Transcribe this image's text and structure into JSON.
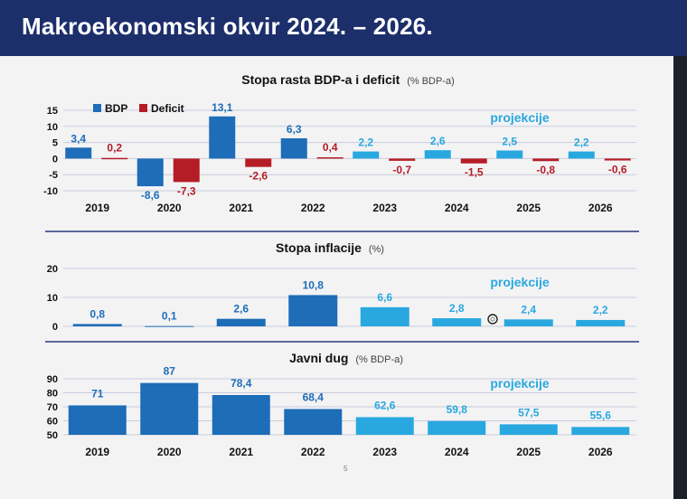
{
  "slide": {
    "title": "Makroekonomski okvir 2024. – 2026.",
    "page_number": "5"
  },
  "colors": {
    "header": "#1c2f6b",
    "actual": "#1d6db8",
    "projection": "#29a8e0",
    "deficit": "#b51d26",
    "projection_text": "#29a8e0",
    "divider": "#2a3a7a"
  },
  "chart_data": [
    {
      "type": "bar",
      "title": "Stopa rasta BDP-a i deficit",
      "unit": "(% BDP-a)",
      "projection_label": "projekcije",
      "categories": [
        "2019",
        "2020",
        "2021",
        "2022",
        "2023",
        "2024",
        "2025",
        "2026"
      ],
      "projection_start": "2023",
      "series": [
        {
          "name": "BDP",
          "values": [
            3.4,
            -8.6,
            13.1,
            6.3,
            2.2,
            2.6,
            2.5,
            2.2
          ],
          "labels": [
            "3,4",
            "-8,6",
            "13,1",
            "6,3",
            "2,2",
            "2,6",
            "2,5",
            "2,2"
          ]
        },
        {
          "name": "Deficit",
          "values": [
            0.2,
            -7.3,
            -2.6,
            0.4,
            -0.7,
            -1.5,
            -0.8,
            -0.6
          ],
          "labels": [
            "0,2",
            "-7,3",
            "-2,6",
            "0,4",
            "-0,7",
            "-1,5",
            "-0,8",
            "-0,6"
          ]
        }
      ],
      "yticks": [
        "15",
        "10",
        "5",
        "0",
        "-5",
        "-10"
      ],
      "ytick_values": [
        15,
        10,
        5,
        0,
        -5,
        -10
      ],
      "ylim": [
        -10,
        15
      ],
      "legend": "top-left"
    },
    {
      "type": "bar",
      "title": "Stopa inflacije",
      "unit": "(%)",
      "projection_label": "projekcije",
      "categories": [
        "2019",
        "2020",
        "2021",
        "2022",
        "2023",
        "2024",
        "2025",
        "2026"
      ],
      "projection_start": "2023",
      "values": [
        0.8,
        0.1,
        2.6,
        10.8,
        6.6,
        2.8,
        2.4,
        2.2
      ],
      "labels": [
        "0,8",
        "0,1",
        "2,6",
        "10,8",
        "6,6",
        "2,8",
        "2,4",
        "2,2"
      ],
      "yticks": [
        "20",
        "10",
        "0"
      ],
      "ytick_values": [
        20,
        10,
        0
      ],
      "ylim": [
        0,
        20
      ]
    },
    {
      "type": "bar",
      "title": "Javni dug",
      "unit": "(% BDP-a)",
      "projection_label": "projekcije",
      "categories": [
        "2019",
        "2020",
        "2021",
        "2022",
        "2023",
        "2024",
        "2025",
        "2026"
      ],
      "projection_start": "2023",
      "values": [
        71,
        87,
        78.4,
        68.4,
        62.6,
        59.8,
        57.5,
        55.6
      ],
      "labels": [
        "71",
        "87",
        "78,4",
        "68,4",
        "62,6",
        "59,8",
        "57,5",
        "55,6"
      ],
      "yticks": [
        "90",
        "80",
        "70",
        "60",
        "50"
      ],
      "ytick_values": [
        90,
        80,
        70,
        60,
        50
      ],
      "ylim": [
        50,
        90
      ]
    }
  ]
}
